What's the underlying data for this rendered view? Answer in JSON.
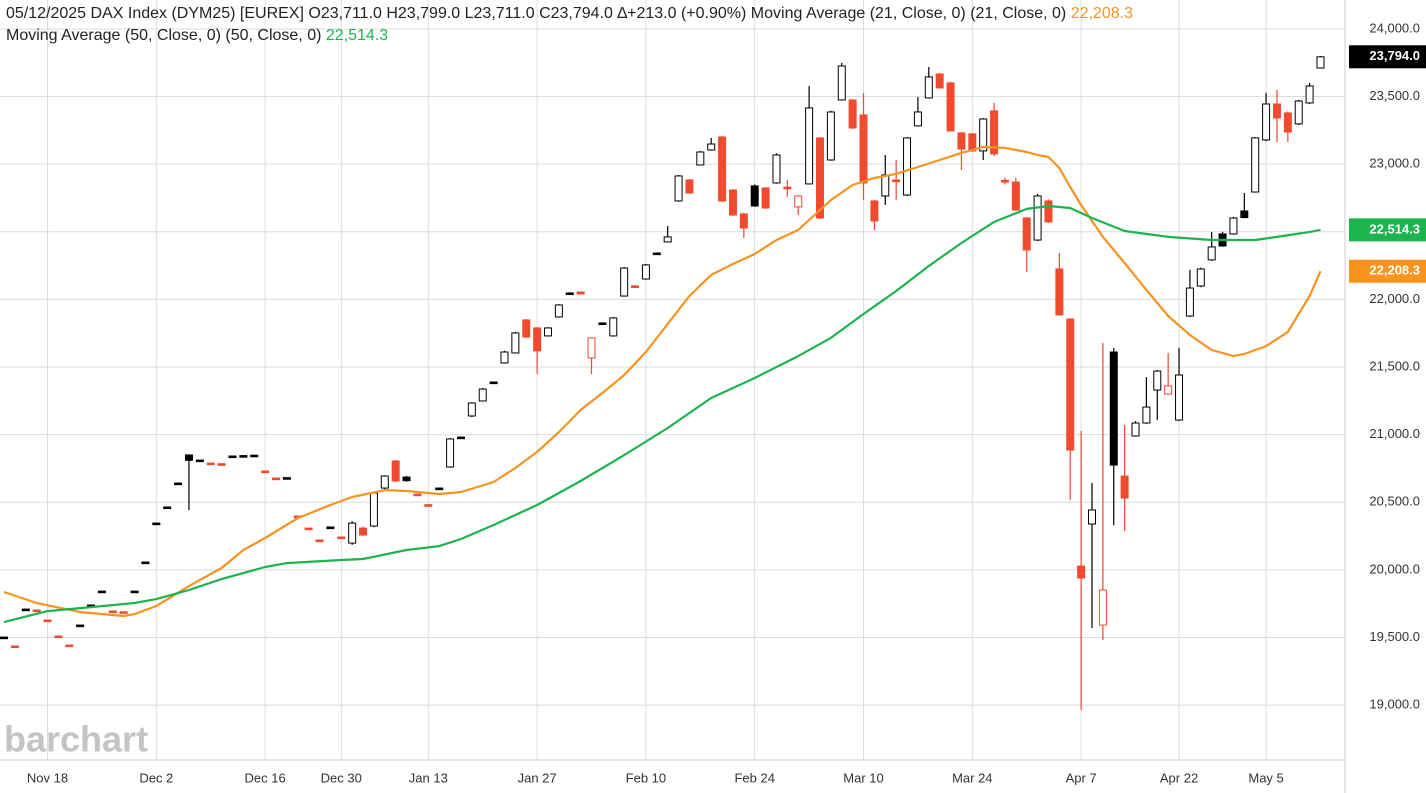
{
  "chart_data": {
    "type": "candlestick",
    "header": "05/12/2025 DAX Index (DYM25) [EUREX] O23,711.0 H23,799.0 L23,711.0 C23,794.0 ∆+213.0 (+0.90%)",
    "watermark": "barchart",
    "up_color": "#000000",
    "down_color": "#f04a2f",
    "close_label": "23,794.0",
    "grid": true,
    "ylim": [
      18594,
      24214
    ],
    "yticks": [
      {
        "value": 19000,
        "label": "19,000.0"
      },
      {
        "value": 19500,
        "label": "19,500.0"
      },
      {
        "value": 20000,
        "label": "20,000.0"
      },
      {
        "value": 20500,
        "label": "20,500.0"
      },
      {
        "value": 21000,
        "label": "21,000.0"
      },
      {
        "value": 21500,
        "label": "21,500.0"
      },
      {
        "value": 22000,
        "label": "22,000.0"
      },
      {
        "value": 22500,
        "label": "22,500.0"
      },
      {
        "value": 23000,
        "label": "23,000.0"
      },
      {
        "value": 23500,
        "label": "23,500.0"
      },
      {
        "value": 24000,
        "label": "24,000.0"
      }
    ],
    "xticks": [
      "Nov 18",
      "Dec 2",
      "Dec 16",
      "Dec 30",
      "Jan 13",
      "Jan 27",
      "Feb 10",
      "Feb 24",
      "Mar 10",
      "Mar 24",
      "Apr 7",
      "Apr 22",
      "May 5"
    ],
    "categories": [
      "Nov 12",
      "Nov 13",
      "Nov 14",
      "Nov 15",
      "Nov 18",
      "Nov 19",
      "Nov 20",
      "Nov 21",
      "Nov 22",
      "Nov 25",
      "Nov 26",
      "Nov 27",
      "Nov 28",
      "Nov 29",
      "Dec 2",
      "Dec 3",
      "Dec 4",
      "Dec 5",
      "Dec 6",
      "Dec 9",
      "Dec 10",
      "Dec 11",
      "Dec 12",
      "Dec 13",
      "Dec 16",
      "Dec 17",
      "Dec 18",
      "Dec 19",
      "Dec 20",
      "Dec 23",
      "Dec 27",
      "Dec 30",
      "Jan 2",
      "Jan 3",
      "Jan 6",
      "Jan 7",
      "Jan 8",
      "Jan 9",
      "Jan 10",
      "Jan 13",
      "Jan 14",
      "Jan 15",
      "Jan 16",
      "Jan 17",
      "Jan 20",
      "Jan 21",
      "Jan 22",
      "Jan 23",
      "Jan 24",
      "Jan 27",
      "Jan 28",
      "Jan 29",
      "Jan 30",
      "Jan 31",
      "Feb 3",
      "Feb 4",
      "Feb 5",
      "Feb 6",
      "Feb 7",
      "Feb 10",
      "Feb 11",
      "Feb 12",
      "Feb 13",
      "Feb 14",
      "Feb 17",
      "Feb 18",
      "Feb 19",
      "Feb 20",
      "Feb 21",
      "Feb 24",
      "Feb 25",
      "Feb 26",
      "Feb 27",
      "Feb 28",
      "Mar 3",
      "Mar 4",
      "Mar 5",
      "Mar 6",
      "Mar 7",
      "Mar 10",
      "Mar 11",
      "Mar 12",
      "Mar 13",
      "Mar 14",
      "Mar 17",
      "Mar 18",
      "Mar 19",
      "Mar 20",
      "Mar 21",
      "Mar 24",
      "Mar 25",
      "Mar 26",
      "Mar 27",
      "Mar 28",
      "Mar 31",
      "Apr 1",
      "Apr 2",
      "Apr 3",
      "Apr 4",
      "Apr 7",
      "Apr 8",
      "Apr 9",
      "Apr 10",
      "Apr 11",
      "Apr 14",
      "Apr 15",
      "Apr 16",
      "Apr 17",
      "Apr 22",
      "Apr 23",
      "Apr 24",
      "Apr 25",
      "Apr 28",
      "Apr 29",
      "Apr 30",
      "May 2",
      "May 5",
      "May 6",
      "May 7",
      "May 8",
      "May 9",
      "May 12"
    ],
    "open": [
      19503,
      19437,
      19710,
      19703,
      19629,
      19511,
      19444,
      19592,
      19740,
      19843,
      19696,
      19690,
      19843,
      20058,
      20346,
      20465,
      20642,
      20850,
      20812,
      20790,
      20785,
      20842,
      20845,
      20848,
      20731,
      20679,
      20682,
      20398,
      20309,
      20221,
      20317,
      20243,
      20198,
      20309,
      20324,
      20605,
      20805,
      20686,
      20560,
      20482,
      20600,
      20761,
      20980,
      21138,
      21249,
      21387,
      21530,
      21604,
      21848,
      21789,
      21730,
      21870,
      22045,
      22055,
      21567,
      21822,
      21730,
      22025,
      22100,
      22151,
      22340,
      22425,
      22728,
      22883,
      22994,
      23105,
      23201,
      22809,
      22632,
      22839,
      22824,
      22861,
      22830,
      22684,
      22854,
      23194,
      23031,
      23475,
      23475,
      23364,
      22728,
      22765,
      22883,
      22772,
      23283,
      23490,
      23667,
      23601,
      23231,
      23224,
      23098,
      23394,
      22880,
      22868,
      22602,
      22439,
      22728,
      22225,
      21855,
      20028,
      20339,
      19592,
      21611,
      20694,
      20990,
      21086,
      21330,
      21300,
      21108,
      21877,
      22099,
      22292,
      22484,
      22484,
      22654,
      22794,
      23179,
      23445,
      23379,
      23298,
      23453,
      23711
    ],
    "high": [
      19503,
      19437,
      19710,
      19703,
      19629,
      19511,
      19444,
      19592,
      19740,
      19843,
      19696,
      19690,
      19843,
      20058,
      20346,
      20465,
      20642,
      20850,
      20812,
      20790,
      20785,
      20842,
      20845,
      20848,
      20731,
      20679,
      20682,
      20398,
      20309,
      20221,
      20317,
      20243,
      20360,
      20320,
      20580,
      20700,
      20812,
      20695,
      20565,
      20485,
      20608,
      20975,
      20985,
      21240,
      21345,
      21392,
      21620,
      21760,
      21855,
      21795,
      21795,
      21965,
      22052,
      22058,
      21720,
      21830,
      21870,
      22240,
      22105,
      22262,
      22348,
      22543,
      22920,
      22890,
      23098,
      23194,
      23210,
      22815,
      22640,
      22850,
      22830,
      23080,
      22883,
      22772,
      23578,
      23200,
      23395,
      23749,
      23480,
      23527,
      22735,
      23068,
      23031,
      23200,
      23497,
      23719,
      23675,
      23610,
      23238,
      23230,
      23342,
      23453,
      22900,
      22900,
      22610,
      22780,
      22740,
      22343,
      21862,
      21027,
      20642,
      21678,
      21641,
      21071,
      21100,
      21426,
      21478,
      21604,
      21641,
      22218,
      22235,
      22499,
      22500,
      22610,
      22787,
      23200,
      23527,
      23549,
      23390,
      23475,
      23600,
      23799
    ],
    "low": [
      19503,
      19437,
      19710,
      19703,
      19629,
      19511,
      19444,
      19592,
      19740,
      19843,
      19696,
      19690,
      19843,
      20058,
      20346,
      20465,
      20642,
      20442,
      20812,
      20790,
      20785,
      20842,
      20845,
      20848,
      20731,
      20679,
      20682,
      20398,
      20309,
      20221,
      20317,
      20243,
      20185,
      20250,
      20315,
      20598,
      20650,
      20650,
      20550,
      20478,
      20598,
      20755,
      20978,
      21130,
      21245,
      21385,
      21525,
      21600,
      21715,
      21448,
      21725,
      21865,
      22042,
      22036,
      21448,
      21818,
      21725,
      22020,
      22088,
      22145,
      22336,
      22420,
      22722,
      22780,
      22990,
      23100,
      22720,
      22618,
      22454,
      22685,
      22670,
      22855,
      22758,
      22624,
      22850,
      22595,
      23025,
      23470,
      23260,
      22735,
      22513,
      22698,
      22735,
      22765,
      23278,
      23485,
      23558,
      23240,
      22957,
      23090,
      23031,
      23060,
      22850,
      22655,
      22203,
      22432,
      22565,
      21880,
      20517,
      18963,
      19570,
      19481,
      20330,
      20287,
      20985,
      21080,
      21108,
      21295,
      21100,
      21870,
      22090,
      22285,
      22390,
      22478,
      22600,
      22790,
      23170,
      23164,
      23164,
      23290,
      23445,
      23711
    ],
    "close": [
      19503,
      19437,
      19710,
      19703,
      19629,
      19511,
      19444,
      19592,
      19740,
      19843,
      19696,
      19690,
      19843,
      20058,
      20346,
      20465,
      20642,
      20810,
      20812,
      20790,
      20785,
      20842,
      20845,
      20848,
      20731,
      20679,
      20682,
      20398,
      20309,
      20221,
      20317,
      20243,
      20346,
      20258,
      20568,
      20694,
      20657,
      20660,
      20555,
      20480,
      20605,
      20968,
      20982,
      21234,
      21337,
      21389,
      21611,
      21752,
      21722,
      21619,
      21789,
      21959,
      22048,
      22040,
      21715,
      21826,
      21863,
      22232,
      22092,
      22255,
      22343,
      22462,
      22913,
      22787,
      23090,
      23149,
      22728,
      22624,
      22528,
      22691,
      22676,
      23068,
      22820,
      22765,
      23416,
      22602,
      23386,
      23726,
      23268,
      22861,
      22580,
      22920,
      22876,
      23194,
      23386,
      23645,
      23564,
      23246,
      23112,
      23098,
      23334,
      23076,
      22876,
      22661,
      22365,
      22765,
      22573,
      21885,
      20886,
      19940,
      20443,
      19851,
      20775,
      20531,
      21086,
      21204,
      21470,
      21360,
      21441,
      22084,
      22225,
      22388,
      22395,
      22602,
      22605,
      23194,
      23445,
      23342,
      23238,
      23467,
      23578,
      23794
    ],
    "series": [
      {
        "name": "Moving Average (21, Close, 0)",
        "params": "(21, Close, 0)",
        "color": "#f7931e",
        "last_label": "22,208.3",
        "x": [
          "Nov 12",
          "Nov 15",
          "Nov 21",
          "Nov 27",
          "Nov 28",
          "Dec 2",
          "Dec 5",
          "Dec 10",
          "Dec 12",
          "Dec 16",
          "Dec 19",
          "Dec 27",
          "Jan 2",
          "Jan 7",
          "Jan 9",
          "Jan 14",
          "Jan 16",
          "Jan 21",
          "Jan 23",
          "Jan 27",
          "Jan 29",
          "Jan 31",
          "Feb 4",
          "Feb 6",
          "Feb 10",
          "Feb 12",
          "Feb 14",
          "Feb 18",
          "Feb 20",
          "Feb 24",
          "Feb 26",
          "Feb 28",
          "Mar 3",
          "Mar 5",
          "Mar 7",
          "Mar 11",
          "Mar 13",
          "Mar 17",
          "Mar 19",
          "Mar 21",
          "Mar 25",
          "Mar 27",
          "Mar 31",
          "Apr 1",
          "Apr 2",
          "Apr 3",
          "Apr 4",
          "Apr 7",
          "Apr 9",
          "Apr 11",
          "Apr 15",
          "Apr 17",
          "Apr 23",
          "Apr 25",
          "Apr 29",
          "Apr 30",
          "May 5",
          "May 7",
          "May 8",
          "May 9",
          "May 12"
        ],
        "values": [
          19836,
          19755,
          19688,
          19659,
          19673,
          19733,
          19880,
          20014,
          20147,
          20236,
          20383,
          20480,
          20539,
          20590,
          20583,
          20561,
          20576,
          20650,
          20753,
          20872,
          21019,
          21182,
          21308,
          21441,
          21611,
          21818,
          22025,
          22181,
          22262,
          22336,
          22439,
          22513,
          22587,
          22735,
          22846,
          22898,
          22928,
          22979,
          23031,
          23083,
          23127,
          23120,
          23090,
          23068,
          23053,
          22972,
          22831,
          22698,
          22462,
          22269,
          22070,
          21877,
          21737,
          21626,
          21581,
          21596,
          21655,
          21759,
          21892,
          22025,
          22208.3
        ]
      },
      {
        "name": "Moving Average (50, Close, 0)",
        "params": "(50, Close, 0)",
        "color": "#1db34f",
        "last_label": "22,514.3",
        "x": [
          "Nov 12",
          "Nov 18",
          "Nov 22",
          "Nov 28",
          "Dec 2",
          "Dec 5",
          "Dec 10",
          "Dec 16",
          "Dec 18",
          "Dec 30",
          "Jan 3",
          "Jan 9",
          "Jan 14",
          "Jan 16",
          "Jan 21",
          "Jan 27",
          "Jan 31",
          "Feb 6",
          "Feb 12",
          "Feb 18",
          "Feb 24",
          "Feb 28",
          "Mar 5",
          "Mar 10",
          "Mar 13",
          "Mar 18",
          "Mar 21",
          "Mar 26",
          "Mar 31",
          "Apr 2",
          "Apr 4",
          "Apr 8",
          "Apr 11",
          "Apr 17",
          "Apr 25",
          "May 2",
          "May 6",
          "May 9",
          "May 12"
        ],
        "values": [
          19614,
          19695,
          19725,
          19755,
          19784,
          19851,
          19932,
          20021,
          20050,
          20073,
          20080,
          20147,
          20176,
          20228,
          20332,
          20480,
          20657,
          20849,
          21049,
          21271,
          21419,
          21581,
          21715,
          21892,
          22062,
          22247,
          22417,
          22573,
          22669,
          22691,
          22676,
          22602,
          22506,
          22462,
          22439,
          22439,
          22462,
          22499,
          22514.3
        ]
      }
    ]
  }
}
